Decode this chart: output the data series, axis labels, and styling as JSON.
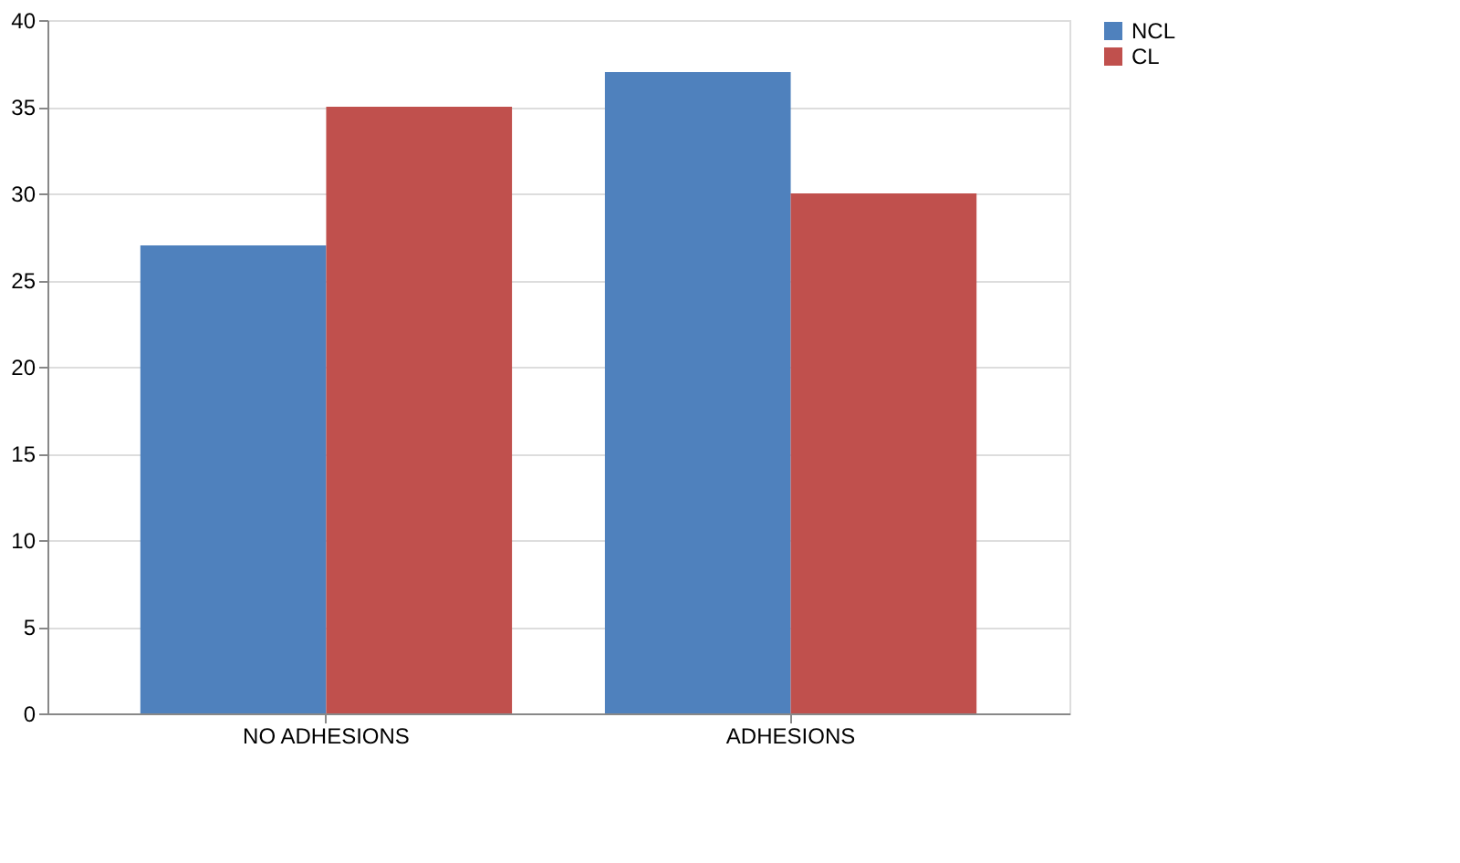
{
  "chart_data": {
    "type": "bar",
    "categories": [
      "NO ADHESIONS",
      "ADHESIONS"
    ],
    "series": [
      {
        "name": "NCL",
        "color": "#4f81bd",
        "values": [
          27,
          37
        ]
      },
      {
        "name": "CL",
        "color": "#c0504d",
        "values": [
          35,
          30
        ]
      }
    ],
    "ylim": [
      0,
      40
    ],
    "yticks": [
      0,
      5,
      10,
      15,
      20,
      25,
      30,
      35,
      40
    ],
    "grid": "y",
    "legend": "right"
  }
}
